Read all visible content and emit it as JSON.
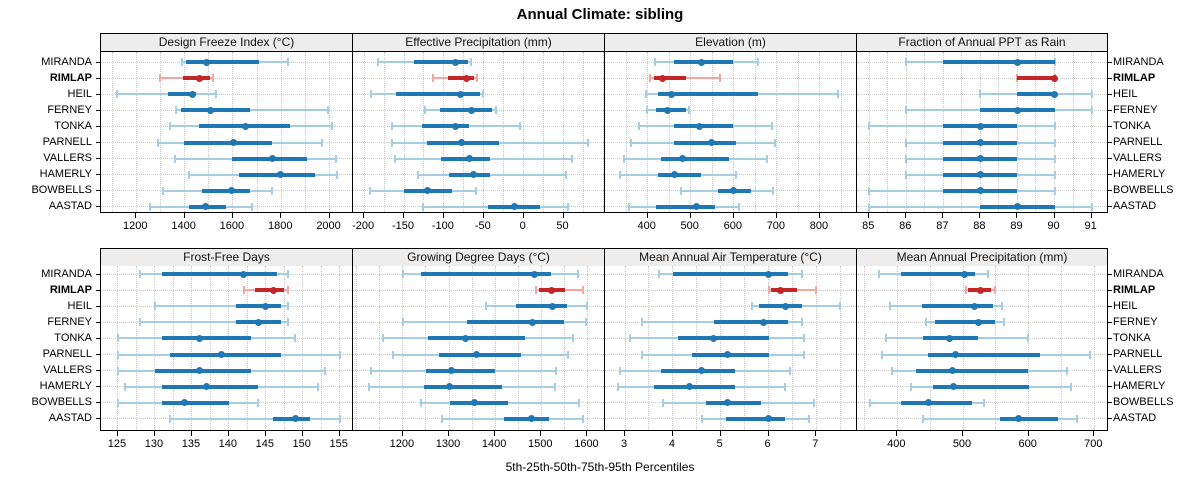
{
  "title": "Annual Climate: sibling",
  "caption": "5th-25th-50th-75th-95th Percentiles",
  "stations": [
    "MIRANDA",
    "RIMLAP",
    "HEIL",
    "FERNEY",
    "TONKA",
    "PARNELL",
    "VALLERS",
    "HAMERLY",
    "BOWBELLS",
    "AASTAD"
  ],
  "highlight_station": "RIMLAP",
  "colors": {
    "blue": "#1f78b4",
    "light_blue": "#a6cee3",
    "red": "#c42527",
    "light_red": "#f2a6a2",
    "grid": "#c9c9c9",
    "header_bg": "#ededed",
    "border": "#000000"
  },
  "chart_data": [
    {
      "type": "percentile_dotplot",
      "id": "design-freeze-index",
      "title": "Design Freeze Index (°C)",
      "percentiles": [
        "5th",
        "25th",
        "50th",
        "75th",
        "95th"
      ],
      "xlim": [
        1054,
        2097
      ],
      "ticks": [
        1200,
        1400,
        1600,
        1800,
        2000
      ],
      "minor_step": 100,
      "values": [
        [
          1388,
          1405,
          1490,
          1710,
          1829
        ],
        [
          1298,
          1392,
          1460,
          1505,
          1517
        ],
        [
          1120,
          1330,
          1434,
          1448,
          1530
        ],
        [
          1363,
          1385,
          1508,
          1672,
          1993
        ],
        [
          1338,
          1459,
          1652,
          1838,
          2011
        ],
        [
          1291,
          1397,
          1601,
          1763,
          1970
        ],
        [
          1359,
          1597,
          1763,
          1908,
          2028
        ],
        [
          1418,
          1625,
          1797,
          1940,
          2032
        ],
        [
          1312,
          1470,
          1594,
          1670,
          1761
        ],
        [
          1257,
          1418,
          1487,
          1570,
          1677
        ]
      ]
    },
    {
      "type": "percentile_dotplot",
      "id": "effective-precipitation",
      "title": "Effective Precipitation (mm)",
      "percentiles": [
        "5th",
        "25th",
        "50th",
        "75th",
        "95th"
      ],
      "xlim": [
        -214,
        102
      ],
      "ticks": [
        -200,
        -150,
        -100,
        -50,
        0,
        50
      ],
      "minor_step": 25,
      "values": [
        [
          -183,
          -138,
          -85,
          -70,
          -66
        ],
        [
          -114,
          -95,
          -72,
          -62,
          -59
        ],
        [
          -192,
          -160,
          -79,
          -55,
          -51
        ],
        [
          -124,
          -105,
          -66,
          -40,
          -35
        ],
        [
          -165,
          -127,
          -86,
          -69,
          -5
        ],
        [
          -165,
          -121,
          -78,
          -31,
          81
        ],
        [
          -161,
          -104,
          -68,
          -42,
          60
        ],
        [
          -132,
          -94,
          -63,
          -42,
          53
        ],
        [
          -193,
          -150,
          -121,
          -90,
          -60
        ],
        [
          -126,
          -45,
          -12,
          20,
          55
        ]
      ]
    },
    {
      "type": "percentile_dotplot",
      "id": "elevation",
      "title": "Elevation (m)",
      "percentiles": [
        "5th",
        "25th",
        "50th",
        "75th",
        "95th"
      ],
      "xlim": [
        301,
        886
      ],
      "ticks": [
        400,
        500,
        600,
        700,
        800
      ],
      "minor_step": 50,
      "values": [
        [
          416,
          462,
          526,
          598,
          656
        ],
        [
          406,
          415,
          435,
          490,
          568
        ],
        [
          396,
          423,
          455,
          656,
          843
        ],
        [
          398,
          419,
          445,
          489,
          497
        ],
        [
          381,
          462,
          520,
          598,
          689
        ],
        [
          361,
          462,
          549,
          605,
          696
        ],
        [
          346,
          431,
          480,
          590,
          677
        ],
        [
          336,
          423,
          462,
          524,
          605
        ],
        [
          477,
          563,
          600,
          640,
          691
        ],
        [
          356,
          419,
          514,
          557,
          612
        ]
      ]
    },
    {
      "type": "percentile_dotplot",
      "id": "fraction-ppt-rain",
      "title": "Fraction of Annual PPT as Rain",
      "percentiles": [
        "5th",
        "25th",
        "50th",
        "75th",
        "95th"
      ],
      "xlim": [
        84.67,
        91.47
      ],
      "ticks": [
        85,
        86,
        87,
        88,
        89,
        90,
        91
      ],
      "minor_step": 0.5,
      "values": [
        [
          86,
          87,
          89,
          90,
          90
        ],
        [
          89,
          89,
          90,
          90,
          90
        ],
        [
          88,
          89,
          90,
          90,
          91
        ],
        [
          86,
          88,
          89,
          90,
          91
        ],
        [
          85,
          87,
          88,
          89,
          90
        ],
        [
          86,
          87,
          88,
          89,
          90
        ],
        [
          86,
          87,
          88,
          89,
          90
        ],
        [
          86,
          87,
          88,
          89,
          90
        ],
        [
          85,
          87,
          88,
          89,
          90
        ],
        [
          85,
          88,
          89,
          90,
          91
        ]
      ]
    },
    {
      "type": "percentile_dotplot",
      "id": "frost-free-days",
      "title": "Frost-Free Days",
      "percentiles": [
        "5th",
        "25th",
        "50th",
        "75th",
        "95th"
      ],
      "xlim": [
        122.7,
        156.8
      ],
      "ticks": [
        125,
        130,
        135,
        140,
        145,
        150,
        155
      ],
      "minor_step": 2.5,
      "values": [
        [
          128,
          131,
          142,
          146.5,
          148
        ],
        [
          142,
          143.5,
          146,
          147.5,
          148
        ],
        [
          130,
          141,
          145,
          147,
          148
        ],
        [
          128,
          141,
          144,
          147,
          148
        ],
        [
          125,
          131,
          136,
          143,
          149
        ],
        [
          125,
          132,
          139,
          147,
          155
        ],
        [
          125,
          130,
          136,
          143,
          153
        ],
        [
          126,
          131,
          137,
          144,
          152
        ],
        [
          125,
          131,
          134,
          140,
          144
        ],
        [
          132,
          146,
          149,
          151,
          155
        ]
      ]
    },
    {
      "type": "percentile_dotplot",
      "id": "growing-degree-days",
      "title": "Growing Degree Days (°C)",
      "percentiles": [
        "5th",
        "25th",
        "50th",
        "75th",
        "95th"
      ],
      "xlim": [
        1092,
        1638
      ],
      "ticks": [
        1200,
        1300,
        1400,
        1500,
        1600
      ],
      "minor_step": 50,
      "values": [
        [
          1200,
          1240,
          1485,
          1520,
          1580
        ],
        [
          1488,
          1495,
          1522,
          1552,
          1590
        ],
        [
          1380,
          1445,
          1525,
          1555,
          1600
        ],
        [
          1200,
          1340,
          1480,
          1550,
          1596
        ],
        [
          1157,
          1255,
          1336,
          1465,
          1568
        ],
        [
          1179,
          1278,
          1360,
          1457,
          1557
        ],
        [
          1130,
          1250,
          1306,
          1400,
          1532
        ],
        [
          1126,
          1245,
          1300,
          1414,
          1529
        ],
        [
          1240,
          1303,
          1355,
          1428,
          1581
        ],
        [
          1285,
          1420,
          1478,
          1517,
          1590
        ]
      ]
    },
    {
      "type": "percentile_dotplot",
      "id": "mean-annual-air-temperature",
      "title": "Mean Annual Air Temperature (°C)",
      "percentiles": [
        "5th",
        "25th",
        "50th",
        "75th",
        "95th"
      ],
      "xlim": [
        2.58,
        7.85
      ],
      "ticks": [
        3,
        4,
        5,
        6,
        7
      ],
      "minor_step": 0.5,
      "values": [
        [
          3.7,
          4.0,
          6.0,
          6.4,
          6.7
        ],
        [
          6.0,
          6.05,
          6.25,
          6.6,
          7.0
        ],
        [
          5.65,
          5.8,
          6.35,
          6.7,
          7.5
        ],
        [
          3.35,
          4.85,
          5.9,
          6.4,
          6.7
        ],
        [
          3.1,
          4.1,
          4.85,
          6.0,
          6.75
        ],
        [
          3.35,
          4.4,
          5.15,
          6.0,
          6.75
        ],
        [
          2.9,
          3.75,
          4.6,
          5.3,
          6.45
        ],
        [
          2.85,
          3.6,
          4.35,
          5.3,
          6.35
        ],
        [
          3.8,
          4.7,
          5.15,
          5.85,
          6.95
        ],
        [
          4.6,
          5.1,
          6.0,
          6.35,
          6.85
        ]
      ]
    },
    {
      "type": "percentile_dotplot",
      "id": "mean-annual-precipitation",
      "title": "Mean Annual Precipitation (mm)",
      "percentiles": [
        "5th",
        "25th",
        "50th",
        "75th",
        "95th"
      ],
      "xlim": [
        338.6,
        722.3
      ],
      "ticks": [
        400,
        500,
        600,
        700
      ],
      "minor_step": 50,
      "values": [
        [
          372,
          405,
          503,
          518,
          538
        ],
        [
          504,
          508,
          527,
          543,
          548
        ],
        [
          389,
          437,
          517,
          545,
          560
        ],
        [
          443,
          457,
          523,
          548,
          562
        ],
        [
          382,
          439,
          480,
          523,
          599
        ],
        [
          377,
          447,
          488,
          617,
          694
        ],
        [
          392,
          429,
          484,
          599,
          659
        ],
        [
          421,
          454,
          485,
          601,
          665
        ],
        [
          358,
          406,
          448,
          513,
          532
        ],
        [
          439,
          556,
          585,
          645,
          674
        ]
      ]
    }
  ]
}
